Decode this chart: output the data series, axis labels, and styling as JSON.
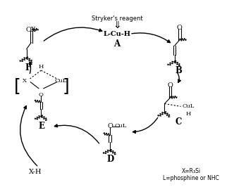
{
  "bg_color": "#ffffff",
  "text_color": "#000000",
  "lw": 0.9,
  "fs_small": 6.0,
  "fs_med": 7.0,
  "fs_label": 8.5,
  "strykers": "Stryker's reagent",
  "arrow_down": "⇓",
  "A_label": "L-Cu-H",
  "A_name": "A",
  "B_name": "B",
  "C_name": "C",
  "D_name": "D",
  "E_name": "E",
  "F_name": "F",
  "XH": "X-H",
  "CuL": "CuL",
  "legend1": "X=R₃Si",
  "legend2": "L=phosphine or NHC",
  "O": "O",
  "OX": "OX",
  "X": "X",
  "H": "H"
}
